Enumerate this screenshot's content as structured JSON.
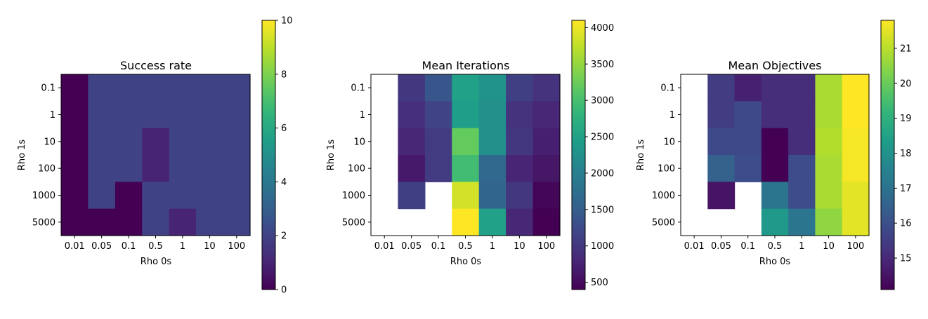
{
  "chart_data": [
    {
      "type": "heatmap",
      "title": "Success rate",
      "xlabel": "Rho 0s",
      "ylabel": "Rho 1s",
      "x": [
        "0.01",
        "0.05",
        "0.1",
        "0.5",
        "1",
        "10",
        "100"
      ],
      "y": [
        "0.1",
        "1",
        "10",
        "100",
        "1000",
        "5000"
      ],
      "values": [
        [
          0,
          2,
          2,
          2,
          2,
          2,
          2
        ],
        [
          0,
          2,
          2,
          2,
          2,
          2,
          2
        ],
        [
          0,
          2,
          2,
          1,
          2,
          2,
          2
        ],
        [
          0,
          2,
          2,
          1,
          2,
          2,
          2
        ],
        [
          0,
          2,
          0,
          2,
          2,
          2,
          2
        ],
        [
          0,
          0,
          0,
          2,
          1,
          2,
          2
        ]
      ],
      "colorbar": {
        "min": 0,
        "max": 10,
        "ticks": [
          0,
          2,
          4,
          6,
          8,
          10
        ]
      },
      "colormap": "viridis"
    },
    {
      "type": "heatmap",
      "title": "Mean Iterations",
      "xlabel": "Rho 0s",
      "ylabel": "Rho 1s",
      "x": [
        "0.01",
        "0.05",
        "0.1",
        "0.5",
        "1",
        "10",
        "100"
      ],
      "y": [
        "0.1",
        "1",
        "10",
        "100",
        "1000",
        "5000"
      ],
      "values": [
        [
          null,
          1000,
          1400,
          2500,
          2300,
          1100,
          950
        ],
        [
          null,
          900,
          1150,
          2450,
          2250,
          950,
          800
        ],
        [
          null,
          800,
          1050,
          3200,
          2250,
          1000,
          720
        ],
        [
          null,
          650,
          1050,
          2950,
          1650,
          780,
          620
        ],
        [
          null,
          1100,
          null,
          3850,
          1600,
          1000,
          450
        ],
        [
          null,
          null,
          null,
          4100,
          2500,
          800,
          400
        ]
      ],
      "colorbar": {
        "min": 400,
        "max": 4100,
        "ticks": [
          500,
          1000,
          1500,
          2000,
          2500,
          3000,
          3500,
          4000
        ]
      },
      "colormap": "viridis"
    },
    {
      "type": "heatmap",
      "title": "Mean Objectives",
      "xlabel": "Rho 0s",
      "ylabel": "Rho 1s",
      "x": [
        "0.01",
        "0.05",
        "0.1",
        "0.5",
        "1",
        "10",
        "100"
      ],
      "y": [
        "0.1",
        "1",
        "10",
        "100",
        "1000",
        "5000"
      ],
      "values": [
        [
          null,
          15.5,
          14.8,
          15.1,
          15.1,
          20.8,
          21.8
        ],
        [
          null,
          15.5,
          15.8,
          15.1,
          15.1,
          20.8,
          21.8
        ],
        [
          null,
          15.8,
          15.8,
          14.1,
          15.1,
          20.9,
          21.7
        ],
        [
          null,
          16.5,
          15.9,
          14.1,
          15.9,
          20.8,
          21.7
        ],
        [
          null,
          14.5,
          null,
          17.1,
          15.9,
          20.8,
          21.5
        ],
        [
          null,
          null,
          null,
          18.2,
          17.1,
          20.5,
          21.5
        ]
      ],
      "colorbar": {
        "min": 14.1,
        "max": 21.8,
        "ticks": [
          15,
          16,
          17,
          18,
          19,
          20,
          21
        ]
      },
      "colormap": "viridis"
    }
  ]
}
